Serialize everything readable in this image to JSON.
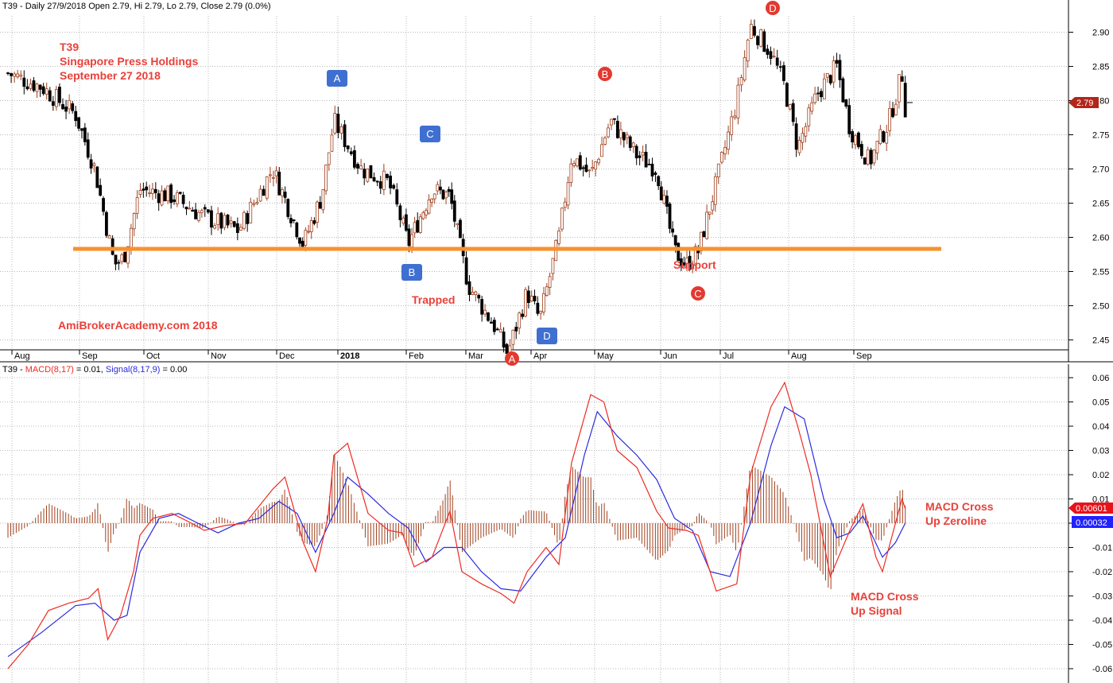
{
  "colors": {
    "macd": "#ee2b22",
    "signal": "#2a2ae0",
    "histogram": "#a0411f",
    "support": "#f7922e",
    "annotation": "#e8413a",
    "marker_square": "#3f6fd1",
    "marker_circle": "#e23a30",
    "grid": "#b8b8b8",
    "price_tag": "#b2261a"
  },
  "price_panel": {
    "header": "T39 - Daily 27/9/2018 Open 2.79, Hi 2.79, Lo 2.79, Close 2.79 (0.0%)",
    "title_lines": [
      "T39",
      "Singapore Press Holdings",
      "September 27 2018"
    ],
    "watermark": "AmiBrokerAcademy.com  2018",
    "last_price_label": "2.79",
    "y_ticks": [
      "2.90",
      "2.85",
      "2.80",
      "2.75",
      "2.70",
      "2.65",
      "2.60",
      "2.55",
      "2.50",
      "2.45"
    ],
    "x_ticks": [
      "Aug",
      "Sep",
      "Oct",
      "Nov",
      "Dec",
      "2018",
      "Feb",
      "Mar",
      "Apr",
      "May",
      "Jun",
      "Jul",
      "Aug",
      "Sep"
    ],
    "support_label": "Support",
    "trapped_label": "Trapped",
    "markers": [
      {
        "label": "A",
        "shape": "square"
      },
      {
        "label": "B",
        "shape": "square"
      },
      {
        "label": "C",
        "shape": "square"
      },
      {
        "label": "D",
        "shape": "square"
      },
      {
        "label": "A",
        "shape": "circle"
      },
      {
        "label": "B",
        "shape": "circle"
      },
      {
        "label": "C",
        "shape": "circle"
      },
      {
        "label": "D",
        "shape": "circle"
      }
    ]
  },
  "macd_panel": {
    "header_prefix": "T39 - ",
    "macd_label": "MACD(8,17)",
    "macd_value": " = 0.01, ",
    "signal_label": "Signal(8,17,9)",
    "signal_value": " = 0.00",
    "y_ticks": [
      "0.06",
      "0.05",
      "0.04",
      "0.03",
      "0.02",
      "0.01",
      "0",
      "-0.01",
      "-0.02",
      "-0.03",
      "-0.04",
      "-0.05",
      "-0.06"
    ],
    "macd_tag": "0.00601",
    "signal_tag": "0.00032",
    "note_zeroline": [
      "MACD Cross",
      "Up Zeroline"
    ],
    "note_signal": [
      "MACD Cross",
      "Up Signal"
    ]
  },
  "chart_data": [
    {
      "type": "candlestick",
      "title": "T39 Singapore Press Holdings",
      "x_axis": "Jul 2017 - Sep 2018 (daily)",
      "ylim": [
        2.41,
        2.93
      ],
      "support_level": 2.56,
      "last_close": 2.79,
      "month_ticks": [
        "Aug",
        "Sep",
        "Oct",
        "Nov",
        "Dec",
        "2018",
        "Feb",
        "Mar",
        "Apr",
        "May",
        "Jun",
        "Jul",
        "Aug",
        "Sep"
      ],
      "y_ticks": [
        2.45,
        2.5,
        2.55,
        2.6,
        2.65,
        2.7,
        2.75,
        2.8,
        2.85,
        2.9
      ],
      "approx_close_path": [
        {
          "t": 0.0,
          "close": 2.84
        },
        {
          "t": 0.5,
          "close": 2.82
        },
        {
          "t": 1.0,
          "close": 2.78
        },
        {
          "t": 1.3,
          "close": 2.7
        },
        {
          "t": 1.6,
          "close": 2.56
        },
        {
          "t": 1.75,
          "close": 2.57
        },
        {
          "t": 2.0,
          "close": 2.67
        },
        {
          "t": 2.5,
          "close": 2.66
        },
        {
          "t": 3.0,
          "close": 2.63
        },
        {
          "t": 3.5,
          "close": 2.61
        },
        {
          "t": 4.0,
          "close": 2.7
        },
        {
          "t": 4.5,
          "close": 2.59
        },
        {
          "t": 4.8,
          "close": 2.66
        },
        {
          "t": 5.0,
          "close": 2.77
        },
        {
          "t": 5.4,
          "close": 2.7
        },
        {
          "t": 5.8,
          "close": 2.68
        },
        {
          "t": 6.1,
          "close": 2.59
        },
        {
          "t": 6.5,
          "close": 2.67
        },
        {
          "t": 6.8,
          "close": 2.66
        },
        {
          "t": 7.1,
          "close": 2.53
        },
        {
          "t": 7.5,
          "close": 2.47
        },
        {
          "t": 7.7,
          "close": 2.43
        },
        {
          "t": 8.0,
          "close": 2.52
        },
        {
          "t": 8.2,
          "close": 2.48
        },
        {
          "t": 8.5,
          "close": 2.6
        },
        {
          "t": 8.7,
          "close": 2.72
        },
        {
          "t": 9.0,
          "close": 2.69
        },
        {
          "t": 9.3,
          "close": 2.77
        },
        {
          "t": 9.7,
          "close": 2.72
        },
        {
          "t": 10.0,
          "close": 2.7
        },
        {
          "t": 10.3,
          "close": 2.58
        },
        {
          "t": 10.5,
          "close": 2.56
        },
        {
          "t": 10.7,
          "close": 2.58
        },
        {
          "t": 11.0,
          "close": 2.68
        },
        {
          "t": 11.3,
          "close": 2.8
        },
        {
          "t": 11.5,
          "close": 2.91
        },
        {
          "t": 11.8,
          "close": 2.87
        },
        {
          "t": 12.0,
          "close": 2.82
        },
        {
          "t": 12.2,
          "close": 2.73
        },
        {
          "t": 12.5,
          "close": 2.81
        },
        {
          "t": 12.8,
          "close": 2.85
        },
        {
          "t": 13.0,
          "close": 2.76
        },
        {
          "t": 13.3,
          "close": 2.71
        },
        {
          "t": 13.6,
          "close": 2.77
        },
        {
          "t": 13.8,
          "close": 2.84
        },
        {
          "t": 13.85,
          "close": 2.79
        }
      ]
    },
    {
      "type": "line",
      "title": "MACD(8,17) / Signal(8,17,9)",
      "ylim": [
        -0.06,
        0.06
      ],
      "y_ticks": [
        0.06,
        0.05,
        0.04,
        0.03,
        0.02,
        0.01,
        0,
        -0.01,
        -0.02,
        -0.03,
        -0.04,
        -0.05,
        -0.06
      ],
      "series": [
        {
          "name": "MACD(8,17)",
          "points": [
            [
              0.0,
              -0.06
            ],
            [
              0.3,
              -0.05
            ],
            [
              0.6,
              -0.036
            ],
            [
              0.9,
              -0.033
            ],
            [
              1.2,
              -0.031
            ],
            [
              1.35,
              -0.027
            ],
            [
              1.5,
              -0.048
            ],
            [
              1.7,
              -0.038
            ],
            [
              1.9,
              -0.02
            ],
            [
              2.0,
              -0.005
            ],
            [
              2.2,
              0.002
            ],
            [
              2.5,
              0.004
            ],
            [
              2.8,
              0.0
            ],
            [
              3.0,
              -0.003
            ],
            [
              3.3,
              -0.001
            ],
            [
              3.6,
              0.0
            ],
            [
              4.0,
              0.014
            ],
            [
              4.2,
              0.019
            ],
            [
              4.5,
              -0.008
            ],
            [
              4.7,
              -0.02
            ],
            [
              4.9,
              0.002
            ],
            [
              5.0,
              0.028
            ],
            [
              5.2,
              0.033
            ],
            [
              5.5,
              0.004
            ],
            [
              5.8,
              -0.003
            ],
            [
              6.0,
              -0.004
            ],
            [
              6.2,
              -0.018
            ],
            [
              6.5,
              -0.014
            ],
            [
              6.8,
              0.005
            ],
            [
              7.0,
              -0.02
            ],
            [
              7.3,
              -0.025
            ],
            [
              7.6,
              -0.029
            ],
            [
              7.8,
              -0.033
            ],
            [
              8.0,
              -0.02
            ],
            [
              8.3,
              -0.01
            ],
            [
              8.5,
              -0.017
            ],
            [
              8.7,
              0.025
            ],
            [
              9.0,
              0.053
            ],
            [
              9.2,
              0.05
            ],
            [
              9.4,
              0.03
            ],
            [
              9.7,
              0.023
            ],
            [
              10.0,
              0.005
            ],
            [
              10.2,
              -0.002
            ],
            [
              10.5,
              -0.003
            ],
            [
              10.7,
              -0.005
            ],
            [
              11.0,
              -0.028
            ],
            [
              11.3,
              -0.025
            ],
            [
              11.5,
              0.02
            ],
            [
              11.8,
              0.048
            ],
            [
              12.0,
              0.058
            ],
            [
              12.2,
              0.04
            ],
            [
              12.4,
              0.02
            ],
            [
              12.7,
              -0.022
            ],
            [
              13.0,
              -0.003
            ],
            [
              13.2,
              0.008
            ],
            [
              13.4,
              -0.014
            ],
            [
              13.5,
              -0.02
            ],
            [
              13.7,
              0.0
            ],
            [
              13.8,
              0.01
            ],
            [
              13.85,
              0.006
            ]
          ]
        },
        {
          "name": "Signal(8,17,9)",
          "points": [
            [
              0.0,
              -0.055
            ],
            [
              0.5,
              -0.045
            ],
            [
              1.0,
              -0.034
            ],
            [
              1.3,
              -0.033
            ],
            [
              1.6,
              -0.04
            ],
            [
              1.8,
              -0.038
            ],
            [
              2.0,
              -0.012
            ],
            [
              2.3,
              0.002
            ],
            [
              2.6,
              0.004
            ],
            [
              2.9,
              0.0
            ],
            [
              3.2,
              -0.004
            ],
            [
              3.5,
              0.0
            ],
            [
              3.8,
              0.002
            ],
            [
              4.1,
              0.009
            ],
            [
              4.4,
              0.004
            ],
            [
              4.7,
              -0.012
            ],
            [
              5.0,
              0.004
            ],
            [
              5.2,
              0.019
            ],
            [
              5.5,
              0.012
            ],
            [
              5.8,
              0.004
            ],
            [
              6.1,
              -0.002
            ],
            [
              6.4,
              -0.016
            ],
            [
              6.7,
              -0.01
            ],
            [
              7.0,
              -0.01
            ],
            [
              7.3,
              -0.02
            ],
            [
              7.6,
              -0.027
            ],
            [
              7.9,
              -0.028
            ],
            [
              8.3,
              -0.014
            ],
            [
              8.6,
              -0.006
            ],
            [
              8.9,
              0.028
            ],
            [
              9.1,
              0.046
            ],
            [
              9.4,
              0.036
            ],
            [
              9.7,
              0.028
            ],
            [
              10.0,
              0.018
            ],
            [
              10.3,
              0.002
            ],
            [
              10.6,
              -0.003
            ],
            [
              10.9,
              -0.02
            ],
            [
              11.2,
              -0.022
            ],
            [
              11.5,
              0.0
            ],
            [
              11.8,
              0.032
            ],
            [
              12.0,
              0.048
            ],
            [
              12.3,
              0.043
            ],
            [
              12.6,
              0.01
            ],
            [
              12.8,
              -0.006
            ],
            [
              13.0,
              -0.004
            ],
            [
              13.2,
              0.003
            ],
            [
              13.5,
              -0.014
            ],
            [
              13.7,
              -0.008
            ],
            [
              13.85,
              0.0
            ]
          ]
        }
      ],
      "histogram_note": "bars = MACD - Signal, drawn around zero line"
    }
  ]
}
